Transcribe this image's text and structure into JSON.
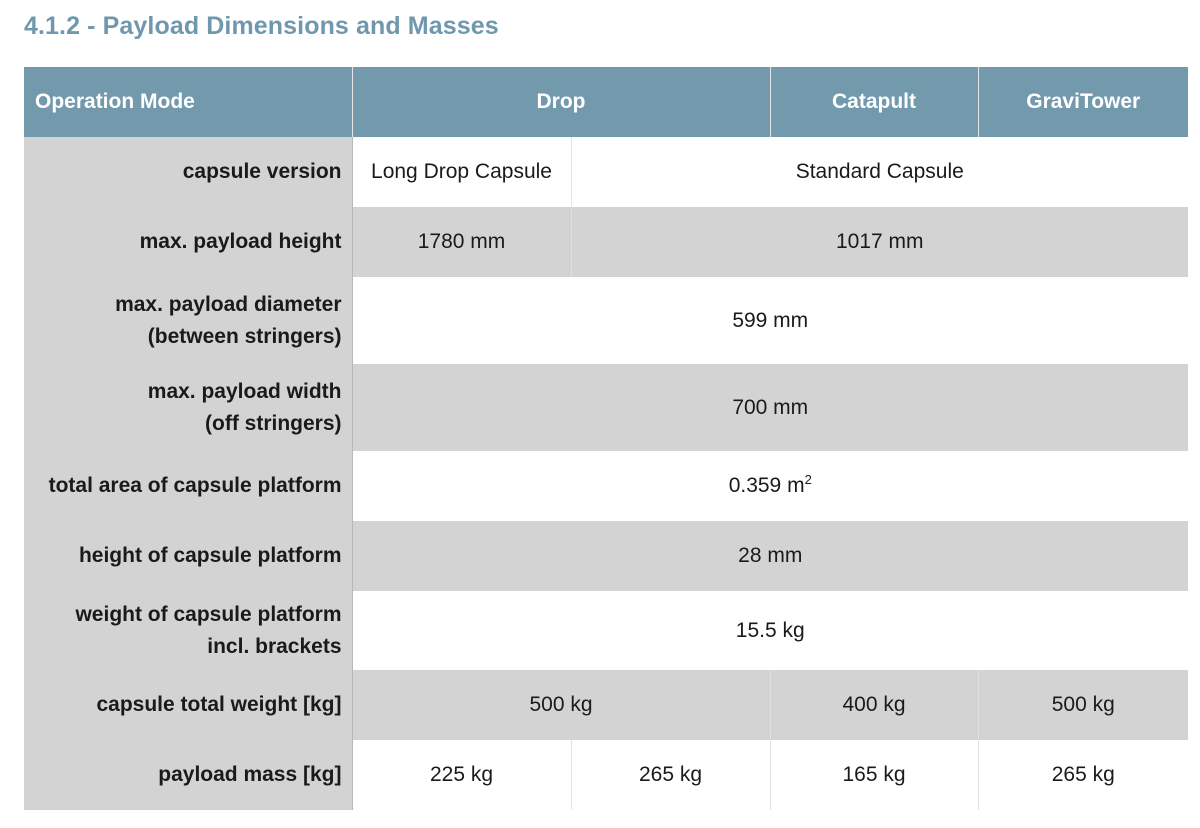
{
  "section_title": "4.1.2 - Payload Dimensions and Masses",
  "header": {
    "operation_mode": "Operation Mode",
    "drop": "Drop",
    "catapult": "Catapult",
    "gravitower": "GraviTower"
  },
  "rows": {
    "capsule_version": {
      "label": "capsule version",
      "long_drop": "Long Drop Capsule",
      "standard": "Standard Capsule"
    },
    "payload_height": {
      "label": "max. payload height",
      "long_drop": "1780 mm",
      "standard": "1017 mm"
    },
    "payload_diameter": {
      "label_line1": "max. payload diameter",
      "label_line2": "(between stringers)",
      "value": "599 mm"
    },
    "payload_width": {
      "label_line1": "max. payload width",
      "label_line2": "(off stringers)",
      "value": "700 mm"
    },
    "platform_area": {
      "label": "total area of capsule platform",
      "value": "0.359 m",
      "unit_superscript": "2"
    },
    "platform_height": {
      "label": "height of capsule platform",
      "value": "28 mm"
    },
    "platform_weight": {
      "label_line1": "weight of capsule platform",
      "label_line2": "incl. brackets",
      "value": "15.5 kg"
    },
    "capsule_total_weight": {
      "label": "capsule total weight [kg]",
      "drop": "500 kg",
      "catapult": "400 kg",
      "gravitower": "500 kg"
    },
    "payload_mass": {
      "label": "payload mass [kg]",
      "drop_long": "225 kg",
      "drop_standard": "265 kg",
      "catapult": "165 kg",
      "gravitower": "265 kg"
    }
  }
}
